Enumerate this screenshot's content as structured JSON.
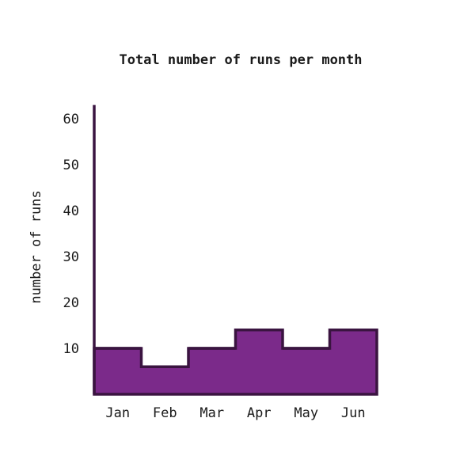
{
  "chart_data": {
    "type": "area",
    "title": "Total number of runs per month",
    "xlabel": "",
    "ylabel": "number of runs",
    "categories": [
      "Jan",
      "Feb",
      "Mar",
      "Apr",
      "May",
      "Jun"
    ],
    "values": [
      10,
      6,
      10,
      14,
      10,
      14
    ],
    "ylim": [
      0,
      63
    ],
    "yticks": [
      10,
      20,
      30,
      40,
      50,
      60
    ],
    "fill_color": "#7b2a8a",
    "line_color": "#3a1440",
    "step": true,
    "grid": false,
    "legend": "none"
  }
}
